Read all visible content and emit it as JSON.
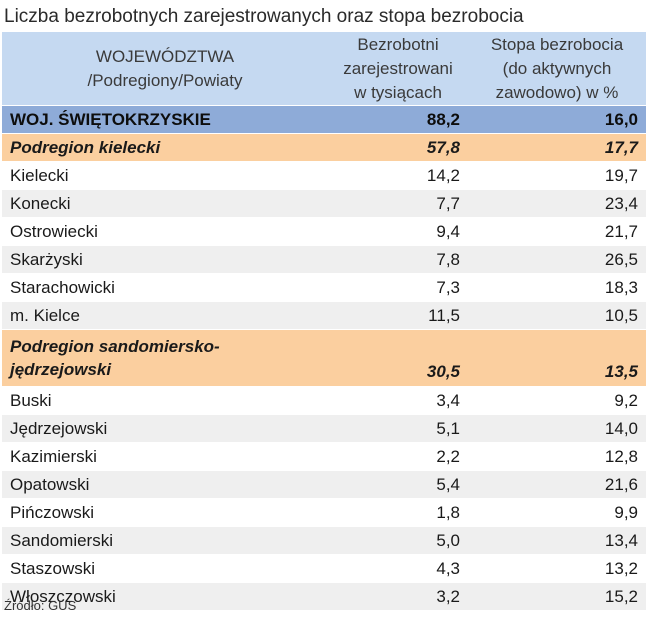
{
  "chart_data": {
    "type": "table",
    "title": "Liczba bezrobotnych zarejestrowanych oraz stopa bezrobocia",
    "columns": [
      "WOJEWÓDZTWA /Podregiony/Powiaty",
      "Bezrobotni zarejestrowani w tysiącach",
      "Stopa bezrobocia (do aktywnych zawodowo) w %"
    ],
    "header": {
      "col1": [
        "WOJEWÓDZTWA",
        "/Podregiony/Powiaty"
      ],
      "col2": [
        "Bezrobotni",
        "zarejestrowani",
        "w tysiącach"
      ],
      "col3": [
        "Stopa bezrobocia",
        "(do aktywnych",
        "zawodowo) w %"
      ]
    },
    "rows": [
      {
        "name": "WOJ. ŚWIĘTOKRZYSKIE",
        "unemployed": "88,2",
        "rate": "16,0",
        "level": "woj"
      },
      {
        "name": "Podregion kielecki",
        "unemployed": "57,8",
        "rate": "17,7",
        "level": "sub"
      },
      {
        "name": "Kielecki",
        "unemployed": "14,2",
        "rate": "19,7",
        "level": "powiat"
      },
      {
        "name": "Konecki",
        "unemployed": "7,7",
        "rate": "23,4",
        "level": "powiat"
      },
      {
        "name": "Ostrowiecki",
        "unemployed": "9,4",
        "rate": "21,7",
        "level": "powiat"
      },
      {
        "name": "Skarżyski",
        "unemployed": "7,8",
        "rate": "26,5",
        "level": "powiat"
      },
      {
        "name": "Starachowicki",
        "unemployed": "7,3",
        "rate": "18,3",
        "level": "powiat"
      },
      {
        "name": "m. Kielce",
        "unemployed": "11,5",
        "rate": "10,5",
        "level": "powiat"
      },
      {
        "name": "Podregion sandomiersko-jędrzejowski",
        "name_lines": [
          "Podregion sandomiersko-",
          "jędrzejowski"
        ],
        "unemployed": "30,5",
        "rate": "13,5",
        "level": "sub"
      },
      {
        "name": "Buski",
        "unemployed": "3,4",
        "rate": "9,2",
        "level": "powiat"
      },
      {
        "name": "Jędrzejowski",
        "unemployed": "5,1",
        "rate": "14,0",
        "level": "powiat"
      },
      {
        "name": "Kazimierski",
        "unemployed": "2,2",
        "rate": "12,8",
        "level": "powiat"
      },
      {
        "name": "Opatowski",
        "unemployed": "5,4",
        "rate": "21,6",
        "level": "powiat"
      },
      {
        "name": "Pińczowski",
        "unemployed": "1,8",
        "rate": "9,9",
        "level": "powiat"
      },
      {
        "name": "Sandomierski",
        "unemployed": "5,0",
        "rate": "13,4",
        "level": "powiat"
      },
      {
        "name": "Staszowski",
        "unemployed": "4,3",
        "rate": "13,2",
        "level": "powiat"
      },
      {
        "name": "Włoszczowski",
        "unemployed": "3,2",
        "rate": "15,2",
        "level": "powiat"
      }
    ],
    "source": "Źródło: GUS"
  },
  "colors": {
    "header": "#c5d9f1",
    "voivodeship_row": "#8eabd8",
    "subregion_row": "#fbcf9f",
    "stripe": "#efefef"
  }
}
